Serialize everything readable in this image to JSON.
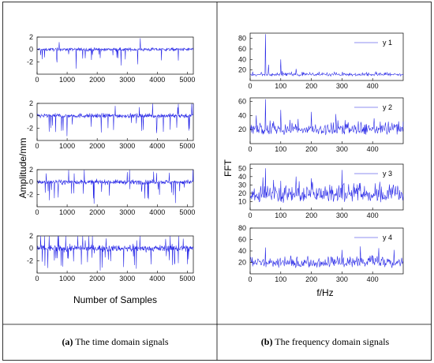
{
  "panels": {
    "a": {
      "caption_label": "(a)",
      "caption_text": " The time domain signals",
      "ylabel": "Amplitude/mm",
      "xlabel": "Number of Samples"
    },
    "b": {
      "caption_label": "(b)",
      "caption_text": " The frequency domain signals",
      "ylabel": "FFT",
      "xlabel": "f/Hz"
    }
  },
  "colors": {
    "signal": "#2020e6",
    "axes": "#000000",
    "border": "#000000"
  },
  "chart_data": [
    {
      "type": "line",
      "name": "time-signal-1",
      "xlim": [
        0,
        5200
      ],
      "ylim": [
        -4,
        2
      ],
      "xticks": [
        0,
        1000,
        2000,
        3000,
        4000,
        5000
      ],
      "yticks": [
        -2,
        0,
        2
      ],
      "baseline": 0,
      "noise": 0.25,
      "spikes": [
        {
          "x": 1300,
          "y": -3.1
        },
        {
          "x": 2800,
          "y": -2.6
        },
        {
          "x": 3350,
          "y": -2.4
        },
        {
          "x": 650,
          "y": -1.6
        },
        {
          "x": 4700,
          "y": -1.8
        },
        {
          "x": 2100,
          "y": -1.4
        }
      ],
      "spike_rate": 0.03,
      "spike_amp": 1.3
    },
    {
      "type": "line",
      "name": "time-signal-2",
      "xlim": [
        0,
        5200
      ],
      "ylim": [
        -4,
        2
      ],
      "xticks": [
        0,
        1000,
        2000,
        3000,
        4000,
        5000
      ],
      "yticks": [
        -2,
        0,
        2
      ],
      "baseline": 0,
      "noise": 0.35,
      "spikes": [
        {
          "x": 1000,
          "y": -3.3
        },
        {
          "x": 4200,
          "y": -2.6
        },
        {
          "x": 2600,
          "y": 1.6
        },
        {
          "x": 3400,
          "y": 1.4
        },
        {
          "x": 450,
          "y": -2.0
        },
        {
          "x": 5050,
          "y": -2.4
        }
      ],
      "spike_rate": 0.05,
      "spike_amp": 1.7
    },
    {
      "type": "line",
      "name": "time-signal-3",
      "xlim": [
        0,
        5200
      ],
      "ylim": [
        -4,
        2
      ],
      "xticks": [
        0,
        1000,
        2000,
        3000,
        4000,
        5000
      ],
      "yticks": [
        -2,
        0,
        2
      ],
      "baseline": 0,
      "noise": 0.35,
      "spikes": [
        {
          "x": 1900,
          "y": -3.5
        },
        {
          "x": 700,
          "y": -2.5
        },
        {
          "x": 4600,
          "y": -3.4
        },
        {
          "x": 3000,
          "y": 1.6
        },
        {
          "x": 4400,
          "y": 1.5
        },
        {
          "x": 2400,
          "y": -2.2
        }
      ],
      "spike_rate": 0.05,
      "spike_amp": 1.7
    },
    {
      "type": "line",
      "name": "time-signal-4",
      "xlim": [
        0,
        5200
      ],
      "ylim": [
        -4,
        2
      ],
      "xticks": [
        0,
        1000,
        2000,
        3000,
        4000,
        5000
      ],
      "yticks": [
        -2,
        0,
        2
      ],
      "baseline": 0,
      "noise": 0.5,
      "spikes": [
        {
          "x": 2100,
          "y": -3.6
        },
        {
          "x": 3300,
          "y": -3.3
        },
        {
          "x": 2300,
          "y": 1.6
        },
        {
          "x": 800,
          "y": -2.8
        },
        {
          "x": 4700,
          "y": -2.4
        },
        {
          "x": 1600,
          "y": 1.3
        }
      ],
      "spike_rate": 0.07,
      "spike_amp": 1.9
    },
    {
      "type": "line",
      "name": "fft-y1",
      "legend": "y 1",
      "xlim": [
        0,
        500
      ],
      "ylim": [
        0,
        90
      ],
      "xticks": [
        0,
        100,
        200,
        300,
        400
      ],
      "yticks": [
        20,
        40,
        60,
        80
      ],
      "base": 8,
      "noise": 7,
      "peaks": [
        {
          "x": 50,
          "y": 88
        },
        {
          "x": 100,
          "y": 40
        },
        {
          "x": 60,
          "y": 30
        },
        {
          "x": 150,
          "y": 22
        }
      ]
    },
    {
      "type": "line",
      "name": "fft-y2",
      "legend": "y 2",
      "xlim": [
        0,
        500
      ],
      "ylim": [
        0,
        65
      ],
      "xticks": [
        0,
        100,
        200,
        300,
        400
      ],
      "yticks": [
        20,
        40,
        60
      ],
      "base": 12,
      "noise": 18,
      "peaks": [
        {
          "x": 50,
          "y": 63
        },
        {
          "x": 100,
          "y": 48
        },
        {
          "x": 200,
          "y": 45
        },
        {
          "x": 280,
          "y": 42
        },
        {
          "x": 20,
          "y": 40
        }
      ]
    },
    {
      "type": "line",
      "name": "fft-y3",
      "legend": "y 3",
      "xlim": [
        0,
        500
      ],
      "ylim": [
        0,
        55
      ],
      "xticks": [
        0,
        100,
        200,
        300,
        400
      ],
      "yticks": [
        10,
        20,
        30,
        40,
        50
      ],
      "base": 8,
      "noise": 22,
      "peaks": [
        {
          "x": 50,
          "y": 50
        },
        {
          "x": 300,
          "y": 48
        },
        {
          "x": 150,
          "y": 40
        },
        {
          "x": 200,
          "y": 38
        },
        {
          "x": 100,
          "y": 35
        }
      ]
    },
    {
      "type": "line",
      "name": "fft-y4",
      "legend": "y 4",
      "xlim": [
        0,
        500
      ],
      "ylim": [
        0,
        80
      ],
      "xticks": [
        0,
        100,
        200,
        300,
        400
      ],
      "yticks": [
        20,
        40,
        60,
        80
      ],
      "base": 10,
      "noise": 20,
      "peaks": [
        {
          "x": 50,
          "y": 46
        },
        {
          "x": 300,
          "y": 42
        },
        {
          "x": 360,
          "y": 48
        },
        {
          "x": 420,
          "y": 45
        },
        {
          "x": 470,
          "y": 42
        }
      ]
    }
  ]
}
